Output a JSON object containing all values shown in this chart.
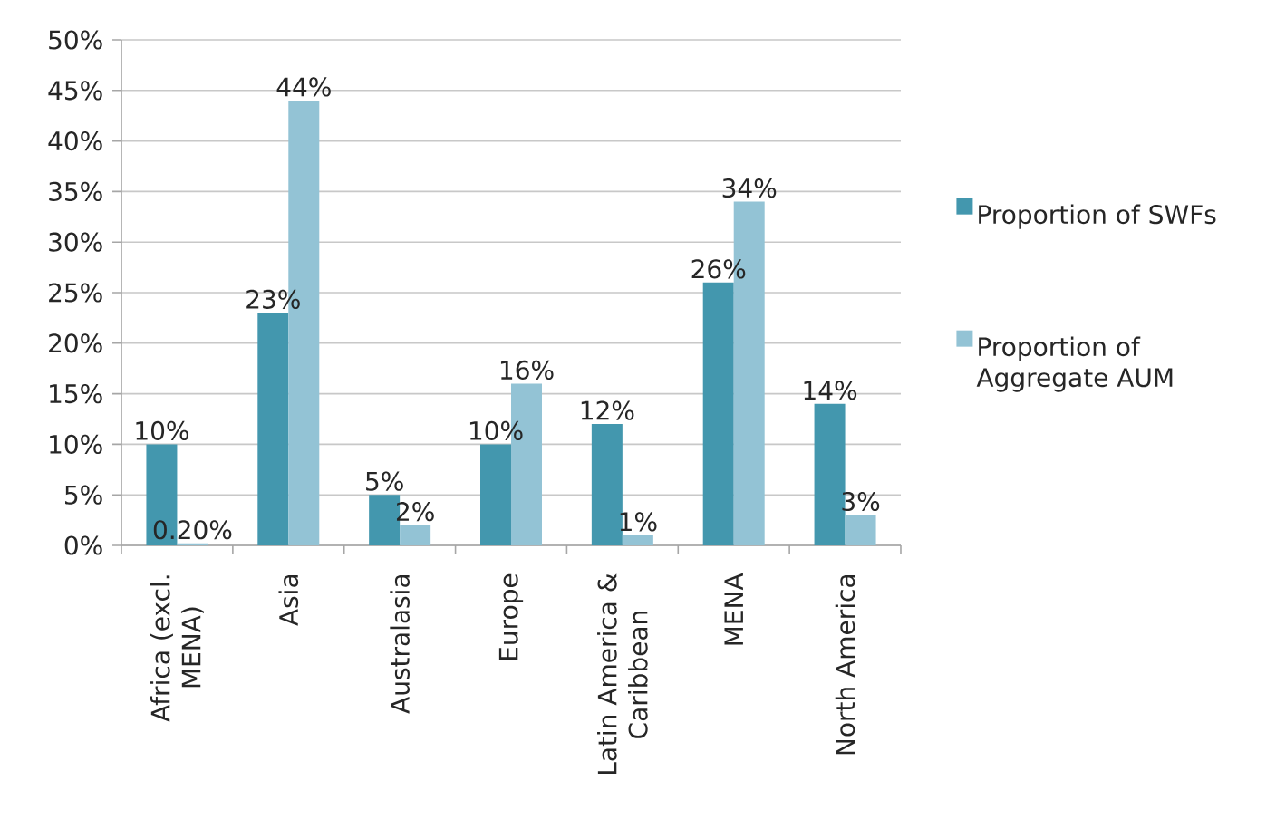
{
  "chart_data": {
    "type": "bar",
    "categories": [
      "Africa (excl. MENA)",
      "Asia",
      "Australasia",
      "Europe",
      "Latin America & Caribbean",
      "MENA",
      "North America"
    ],
    "series": [
      {
        "name": "Proportion of SWFs",
        "color": "#4397ae",
        "values": [
          10,
          23,
          5,
          10,
          12,
          26,
          14
        ],
        "value_labels": [
          "10%",
          "23%",
          "5%",
          "10%",
          "12%",
          "26%",
          "14%"
        ]
      },
      {
        "name": "Proportion of Aggregate AUM",
        "color": "#93c3d5",
        "values": [
          0.2,
          44,
          2,
          16,
          1,
          34,
          3
        ],
        "value_labels": [
          "0.20%",
          "44%",
          "2%",
          "16%",
          "1%",
          "34%",
          "3%"
        ]
      }
    ],
    "ylim": [
      0,
      50
    ],
    "yticks": [
      {
        "value": 0,
        "label": "0%"
      },
      {
        "value": 5,
        "label": "5%"
      },
      {
        "value": 10,
        "label": "10%"
      },
      {
        "value": 15,
        "label": "15%"
      },
      {
        "value": 20,
        "label": "20%"
      },
      {
        "value": 25,
        "label": "25%"
      },
      {
        "value": 30,
        "label": "30%"
      },
      {
        "value": 35,
        "label": "35%"
      },
      {
        "value": 40,
        "label": "40%"
      },
      {
        "value": 45,
        "label": "45%"
      },
      {
        "value": 50,
        "label": "50%"
      }
    ],
    "grid": "y",
    "legend": "right"
  }
}
